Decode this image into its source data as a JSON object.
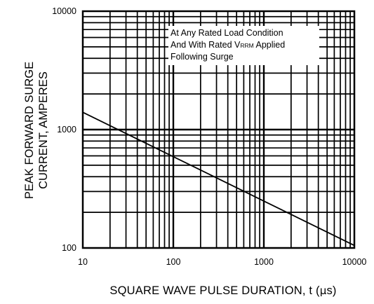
{
  "chart_data": {
    "type": "line",
    "title": "",
    "xlabel": "SQUARE WAVE PULSE DURATION, t (µs)",
    "xlabel_parts": {
      "text": "SQUARE WAVE PULSE DURATION, t (",
      "mu": "µ",
      "unit_tail": "s)"
    },
    "ylabel_lines": [
      "PEAK FORWARD SURGE",
      "CURRENT, AMPERES"
    ],
    "x_scale": "log",
    "y_scale": "log",
    "xlim": [
      10,
      10000
    ],
    "ylim": [
      100,
      10000
    ],
    "x_ticks": [
      "10",
      "100",
      "1000",
      "10000"
    ],
    "y_ticks": [
      "100",
      "1000",
      "10000"
    ],
    "grid": true,
    "annotation": [
      "At Any Rated Load Condition",
      "And With Rated V",
      "RRM",
      " Applied",
      "Following Surge"
    ],
    "series": [
      {
        "x": [
          10,
          10000
        ],
        "y": [
          1400,
          105
        ]
      }
    ],
    "colors": {
      "line": "#000000",
      "grid": "#000000",
      "background": "#ffffff"
    }
  }
}
